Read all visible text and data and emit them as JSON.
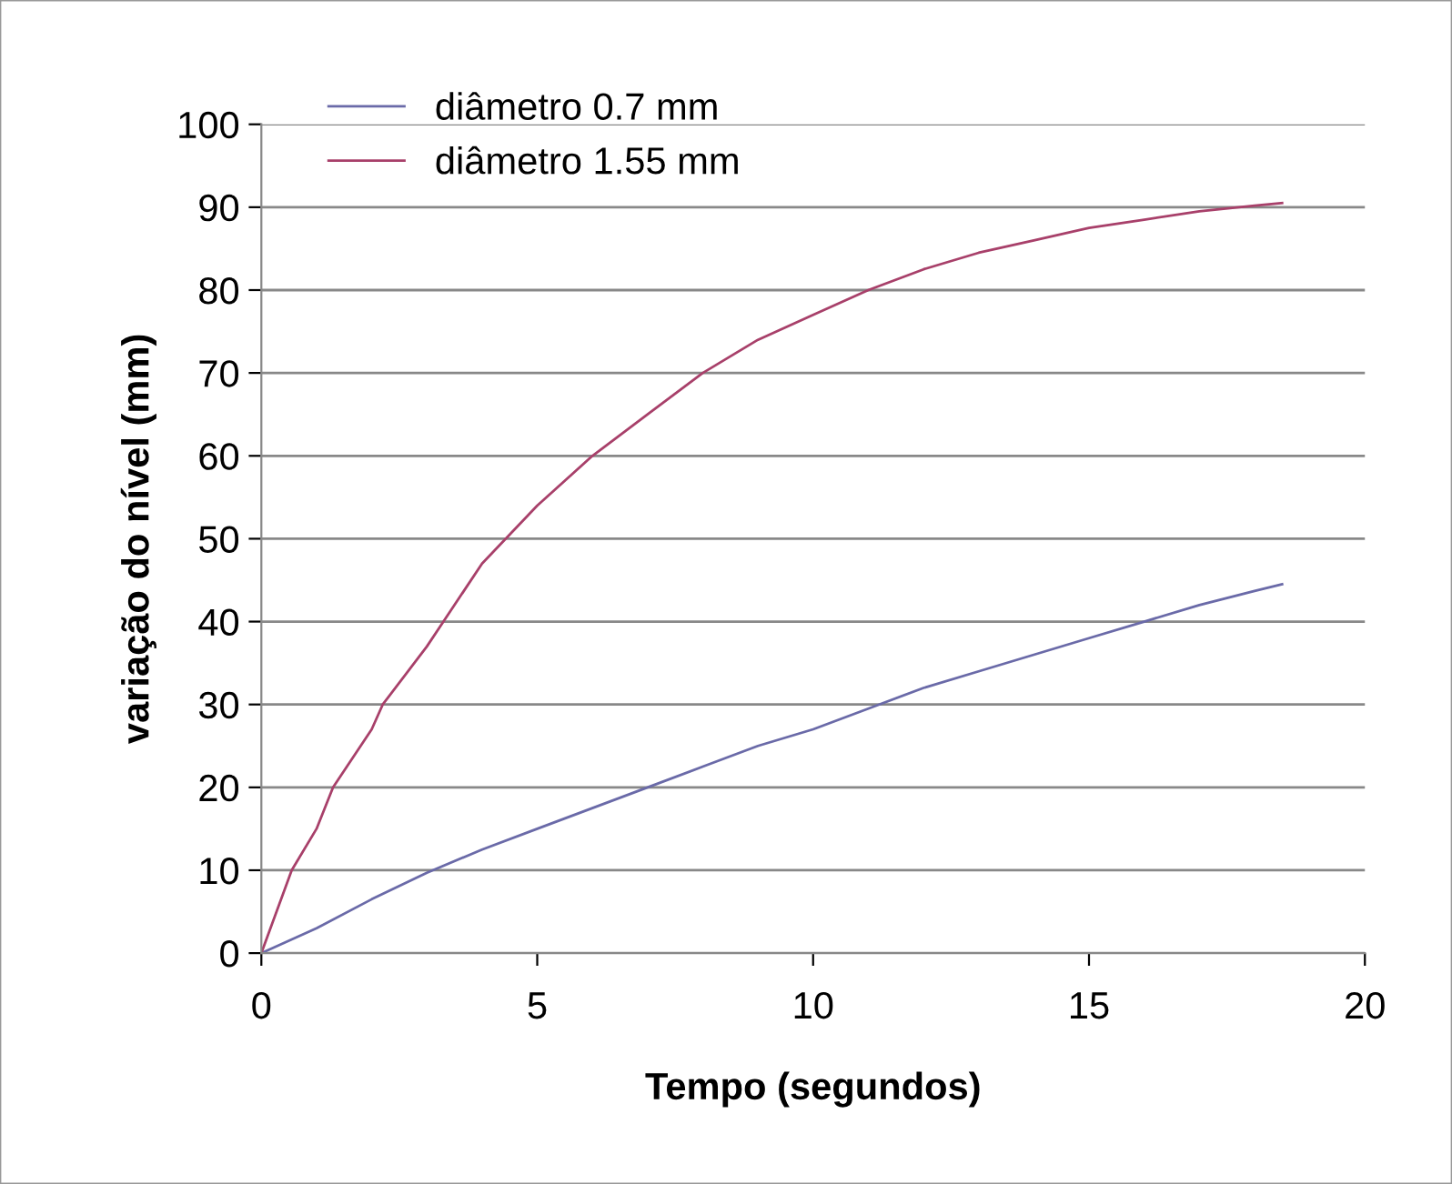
{
  "chart_data": {
    "type": "line",
    "xlabel": "Tempo (segundos)",
    "ylabel": "variação do nível (mm)",
    "xlim": [
      0,
      20
    ],
    "xticks": [
      0,
      5,
      10,
      15,
      20
    ],
    "ylim": [
      0,
      100
    ],
    "yticks": [
      0,
      10,
      20,
      30,
      40,
      50,
      60,
      70,
      80,
      90,
      100
    ],
    "grid": "y",
    "legend": "top left",
    "marker": "none",
    "line_style": "solid",
    "series": [
      {
        "name": "diâmetro 0.7 mm",
        "color": "#6a6aa8",
        "x": [
          0,
          1,
          2,
          3,
          4,
          5,
          6,
          7,
          8,
          9,
          10,
          11,
          12,
          13,
          14,
          15,
          16,
          17,
          18,
          18.5
        ],
        "values": [
          0,
          3,
          6.5,
          9.7,
          12.5,
          15,
          17.5,
          20,
          22.5,
          25,
          27,
          29.5,
          32,
          34,
          36,
          38,
          40,
          42,
          43.7,
          44.5
        ]
      },
      {
        "name": "diâmetro 1.55 mm",
        "color": "#a8406a",
        "x": [
          0,
          0.55,
          1,
          1.3,
          2,
          2.2,
          3,
          3.3,
          4,
          5,
          6,
          7,
          8,
          9,
          10,
          11,
          12,
          13,
          14,
          15,
          16,
          17,
          18,
          18.5
        ],
        "values": [
          0,
          10,
          15,
          20,
          27,
          30,
          37,
          40,
          47,
          54,
          60,
          65,
          70,
          74,
          77,
          80,
          82.5,
          84.5,
          86,
          87.5,
          88.5,
          89.5,
          90.2,
          90.5
        ]
      }
    ]
  }
}
